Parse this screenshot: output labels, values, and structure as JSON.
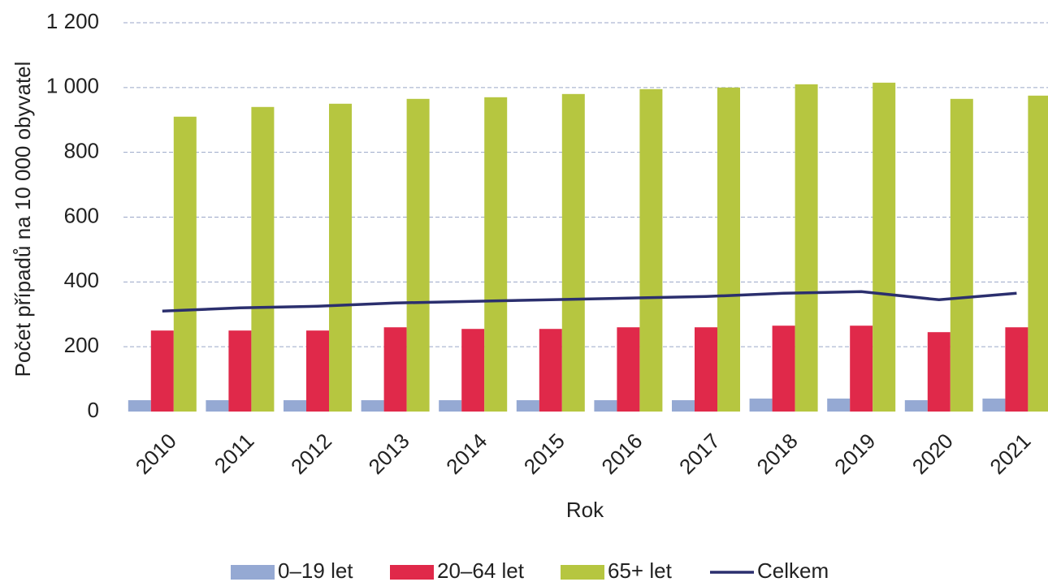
{
  "chart_data": {
    "type": "bar",
    "xlabel": "Rok",
    "ylabel": "Počet případů na 10 000 obyvatel",
    "categories": [
      "2010",
      "2011",
      "2012",
      "2013",
      "2014",
      "2015",
      "2016",
      "2017",
      "2018",
      "2019",
      "2020",
      "2021"
    ],
    "series": [
      {
        "name": "0–19 let",
        "type": "bar",
        "color": "#95a9d3",
        "values": [
          35,
          35,
          35,
          35,
          35,
          35,
          35,
          35,
          40,
          40,
          35,
          40
        ]
      },
      {
        "name": "20–64 let",
        "type": "bar",
        "color": "#e0294a",
        "values": [
          250,
          250,
          250,
          260,
          255,
          255,
          260,
          260,
          265,
          265,
          245,
          260
        ]
      },
      {
        "name": "65+ let",
        "type": "bar",
        "color": "#b6c640",
        "values": [
          910,
          940,
          950,
          965,
          970,
          980,
          995,
          1000,
          1010,
          1015,
          965,
          975
        ]
      },
      {
        "name": "Celkem",
        "type": "line",
        "color": "#2b2f6e",
        "values": [
          310,
          320,
          325,
          335,
          340,
          345,
          350,
          355,
          365,
          370,
          345,
          365
        ]
      }
    ],
    "ylim": [
      0,
      1200
    ],
    "yticks": [
      0,
      200,
      400,
      600,
      800,
      {
        "value": 1000,
        "label": "1 000"
      },
      {
        "value": 1200,
        "label": "1 200"
      }
    ],
    "grid": true,
    "legend": "bottom"
  }
}
